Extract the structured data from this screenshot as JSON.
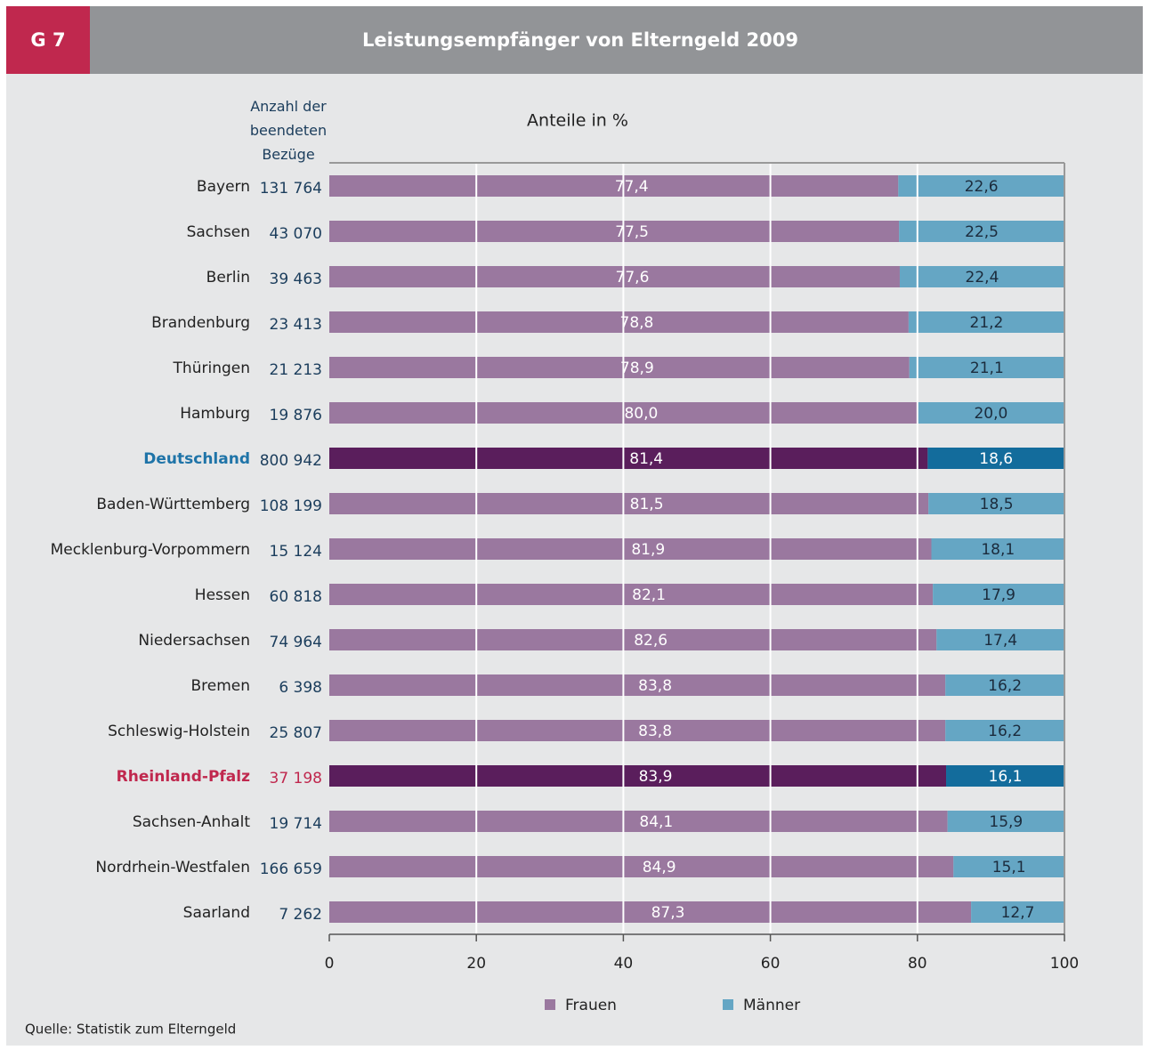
{
  "chart_data": {
    "type": "stacked_barh",
    "badge": "G 7",
    "title": "Leistungsempfänger von Elterngeld 2009",
    "subtitle": "Anteile in %",
    "count_header": "Anzahl der beendeten Bezüge",
    "source": "Quelle: Statistik zum Elterngeld",
    "categories": [
      "Bayern",
      "Sachsen",
      "Berlin",
      "Brandenburg",
      "Thüringen",
      "Hamburg",
      "Deutschland",
      "Baden-Württemberg",
      "Mecklenburg-Vorpommern",
      "Hessen",
      "Niedersachsen",
      "Bremen",
      "Schleswig-Holstein",
      "Rheinland-Pfalz",
      "Sachsen-Anhalt",
      "Nordrhein-Westfalen",
      "Saarland"
    ],
    "counts": [
      "131 764",
      "43 070",
      "39 463",
      "23 413",
      "21 213",
      "19 876",
      "800 942",
      "108 199",
      "15 124",
      "60 818",
      "74 964",
      "6 398",
      "25 807",
      "37 198",
      "19 714",
      "166 659",
      "7 262"
    ],
    "label_colors": {
      "Deutschland": "#1f74a8",
      "Rheinland-Pfalz": "#c0284e"
    },
    "series": [
      {
        "name": "Frauen",
        "color": "#9a789f",
        "highlight_color": "#5a1e5c",
        "values": [
          77.4,
          77.5,
          77.6,
          78.8,
          78.9,
          80.0,
          81.4,
          81.5,
          81.9,
          82.1,
          82.6,
          83.8,
          83.8,
          83.9,
          84.1,
          84.9,
          87.3
        ],
        "value_labels": [
          "77,4",
          "77,5",
          "77,6",
          "78,8",
          "78,9",
          "80,0",
          "81,4",
          "81,5",
          "81,9",
          "82,1",
          "82,6",
          "83,8",
          "83,8",
          "83,9",
          "84,1",
          "84,9",
          "87,3"
        ]
      },
      {
        "name": "Männer",
        "color": "#65a6c4",
        "highlight_color": "#136c9c",
        "values": [
          22.6,
          22.5,
          22.4,
          21.2,
          21.1,
          20.0,
          18.6,
          18.5,
          18.1,
          17.9,
          17.4,
          16.2,
          16.2,
          16.1,
          15.9,
          15.1,
          12.7
        ],
        "value_labels": [
          "22,6",
          "22,5",
          "22,4",
          "21,2",
          "21,1",
          "20,0",
          "18,6",
          "18,5",
          "18,1",
          "17,9",
          "17,4",
          "16,2",
          "16,2",
          "16,1",
          "15,9",
          "15,1",
          "12,7"
        ]
      }
    ],
    "xlim": [
      0,
      100
    ],
    "xticks": [
      0,
      20,
      40,
      60,
      80,
      100
    ],
    "grid": true
  }
}
